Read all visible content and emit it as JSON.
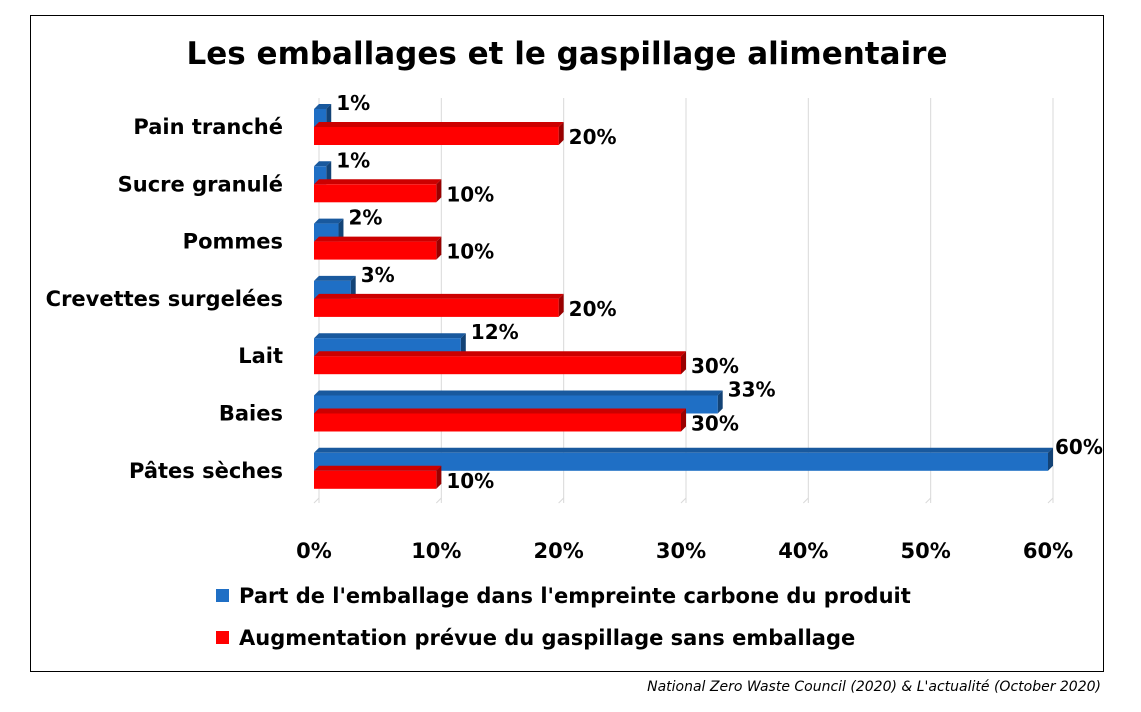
{
  "chart_data": {
    "type": "bar",
    "orientation": "horizontal",
    "title": "Les emballages et le gaspillage alimentaire",
    "categories": [
      "Pain tranché",
      "Sucre granulé",
      "Pommes",
      "Crevettes surgelées",
      "Lait",
      "Baies",
      "Pâtes sèches"
    ],
    "series": [
      {
        "name": "Part de l'emballage dans l'empreinte carbone du produit",
        "color": "#1f6fc5",
        "values": [
          1,
          1,
          2,
          3,
          12,
          33,
          60
        ],
        "labels": [
          "1%",
          "1%",
          "2%",
          "3%",
          "12%",
          "33%",
          "60%"
        ]
      },
      {
        "name": "Augmentation prévue du gaspillage sans emballage",
        "color": "#ff0000",
        "values": [
          20,
          10,
          10,
          20,
          30,
          30,
          10
        ],
        "labels": [
          "20%",
          "10%",
          "10%",
          "20%",
          "30%",
          "30%",
          "10%"
        ]
      }
    ],
    "x_ticks": [
      "0%",
      "10%",
      "20%",
      "30%",
      "40%",
      "50%",
      "60%"
    ],
    "xlim": [
      0,
      60
    ],
    "grid": true,
    "legend_position": "bottom",
    "source": "National Zero Waste Council (2020) & L'actualité (October 2020)"
  }
}
